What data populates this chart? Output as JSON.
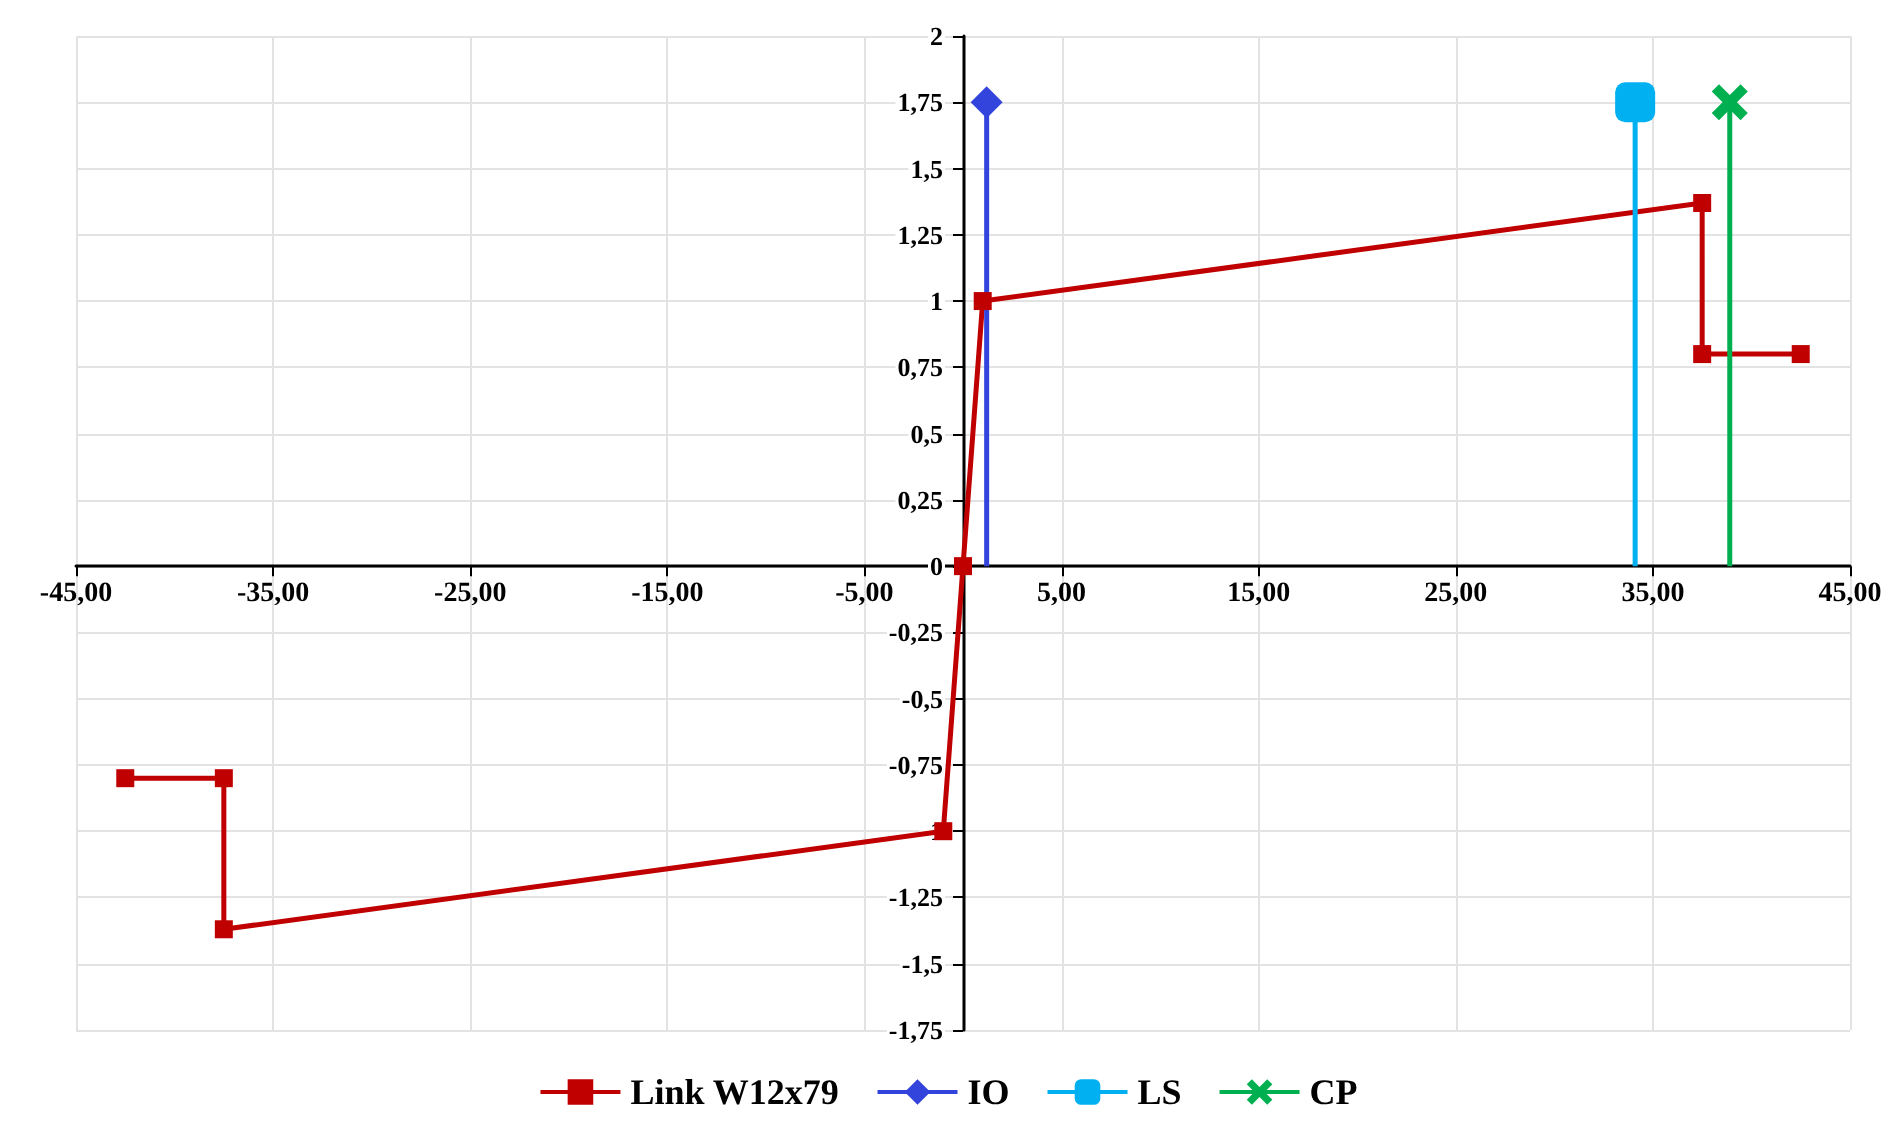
{
  "chart_data": {
    "type": "line",
    "grid": true,
    "legend": "bottom",
    "line_style": "solid",
    "xlim": [
      -45,
      45
    ],
    "xticks": [
      {
        "value": -45,
        "label": "-45,00"
      },
      {
        "value": -35,
        "label": "-35,00"
      },
      {
        "value": -25,
        "label": "-25,00"
      },
      {
        "value": -15,
        "label": "-15,00"
      },
      {
        "value": -5,
        "label": "-5,00"
      },
      {
        "value": 5,
        "label": "5,00"
      },
      {
        "value": 15,
        "label": "15,00"
      },
      {
        "value": 25,
        "label": "25,00"
      },
      {
        "value": 35,
        "label": "35,00"
      },
      {
        "value": 45,
        "label": "45,00"
      }
    ],
    "ylim": [
      -1.75,
      2
    ],
    "yticks": [
      {
        "value": -1.75,
        "label": "-1,75"
      },
      {
        "value": -1.5,
        "label": "-1,5"
      },
      {
        "value": -1.25,
        "label": "-1,25"
      },
      -1,
      {
        "value": -0.75,
        "label": "-0,75"
      },
      {
        "value": -0.5,
        "label": "-0,5"
      },
      {
        "value": -0.25,
        "label": "-0,25"
      },
      0,
      {
        "value": 0.25,
        "label": "0,25"
      },
      {
        "value": 0.5,
        "label": "0,5"
      },
      {
        "value": 0.75,
        "label": "0,75"
      },
      1,
      {
        "value": 1.25,
        "label": "1,25"
      },
      {
        "value": 1.5,
        "label": "1,5"
      },
      {
        "value": 1.75,
        "label": "1,75"
      },
      2
    ],
    "series": [
      {
        "name": "Link W12x79",
        "type": "line",
        "marker": "square",
        "color": "#c00000",
        "x": [
          -42.5,
          -37.5,
          -37.5,
          -1,
          0,
          1,
          37.5,
          37.5,
          42.5
        ],
        "values": [
          -0.8,
          -0.8,
          -1.37,
          -1,
          0,
          1,
          1.37,
          0.8,
          0.8
        ]
      },
      {
        "name": "IO",
        "type": "lollipop",
        "marker": "diamond",
        "color": "#3344dd",
        "x": [
          1.2
        ],
        "values": [
          1.75
        ]
      },
      {
        "name": "LS",
        "type": "lollipop",
        "marker": "square",
        "color": "#00b0f0",
        "x": [
          34.1
        ],
        "values": [
          1.75
        ]
      },
      {
        "name": "CP",
        "type": "lollipop",
        "marker": "cross",
        "color": "#00b050",
        "x": [
          38.9
        ],
        "values": [
          1.75
        ]
      }
    ]
  }
}
